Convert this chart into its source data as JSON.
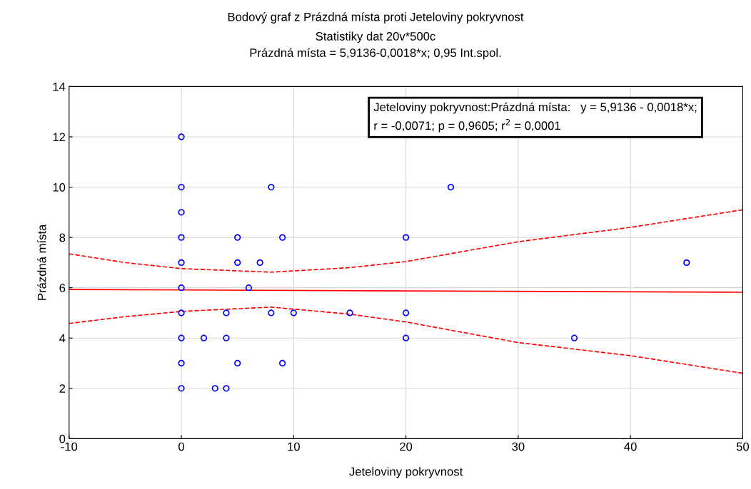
{
  "chart_data": {
    "type": "scatter",
    "title": "Bodový graf z Prázdná místa proti Jeteloviny pokryvnost",
    "subtitle": "Statistiky dat 20v*500c\nPrázdná místa = 5,9136-0,0018*x; 0,95 Int.spol.",
    "xlabel": "Jeteloviny pokryvnost",
    "ylabel": "Prázdná místa",
    "xlim": [
      -10,
      50
    ],
    "xticks": [
      -10,
      0,
      10,
      20,
      30,
      40,
      50
    ],
    "ylim": [
      0,
      14
    ],
    "yticks": [
      0,
      2,
      4,
      6,
      8,
      10,
      12,
      14
    ],
    "grid": true,
    "legend": false,
    "annotations": [
      "Jeteloviny pokryvnost:Prázdná místa:   y = 5,9136 - 0,0018*x;\nr = -0,0071; p = 0,9605; r$^{2}$ = 0,0001"
    ],
    "series": [
      {
        "type": "scatter",
        "color": "#0000ff",
        "marker": "circle",
        "x": [
          0,
          0,
          0,
          0,
          0,
          0,
          0,
          0,
          0,
          0,
          2,
          3,
          4,
          4,
          4,
          5,
          5,
          5,
          6,
          7,
          8,
          8,
          9,
          9,
          10,
          15,
          20,
          20,
          20,
          24,
          35,
          45
        ],
        "values": [
          12,
          10,
          9,
          8,
          7,
          6,
          5,
          4,
          3,
          2,
          4,
          2,
          5,
          4,
          2,
          8,
          7,
          3,
          6,
          7,
          10,
          5,
          8,
          3,
          5,
          5,
          8,
          5,
          4,
          10,
          4,
          7
        ]
      },
      {
        "type": "line",
        "color": "#ff0000",
        "marker": "none",
        "line_style": "solid",
        "x": [
          -10,
          50
        ],
        "values": [
          5.93,
          5.82
        ]
      },
      {
        "type": "line",
        "color": "#ff0000",
        "marker": "none",
        "line_style": "dashed",
        "x": [
          -10,
          -5,
          0,
          8,
          15,
          20,
          30,
          40,
          50
        ],
        "values": [
          7.35,
          7.0,
          6.76,
          6.62,
          6.8,
          7.04,
          7.83,
          8.4,
          9.1
        ]
      },
      {
        "type": "line",
        "color": "#ff0000",
        "marker": "none",
        "line_style": "dashed",
        "x": [
          -10,
          -5,
          0,
          8,
          15,
          20,
          30,
          40,
          50
        ],
        "values": [
          4.58,
          4.85,
          5.06,
          5.23,
          4.95,
          4.64,
          3.82,
          3.3,
          2.6
        ]
      }
    ]
  }
}
